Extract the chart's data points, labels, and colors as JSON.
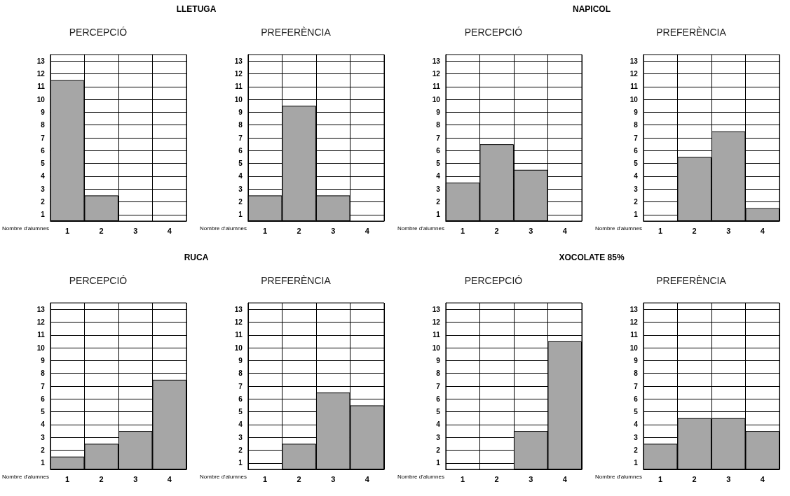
{
  "chart_data": [
    {
      "type": "bar",
      "title": "LLETUGA",
      "subtitle": "PERCEPCIÓ",
      "ylabel": "Nombre d'alumnes",
      "categories": [
        "1",
        "2",
        "3",
        "4"
      ],
      "values": [
        11,
        2,
        0,
        0
      ],
      "color": "#a6a6a6",
      "ylim": [
        0,
        13
      ],
      "yticks": [
        {
          "value": 0.5,
          "label": "1"
        },
        {
          "value": 1.5,
          "label": "2"
        },
        {
          "value": 2.5,
          "label": "3"
        },
        {
          "value": 3.5,
          "label": "4"
        },
        {
          "value": 4.5,
          "label": "5"
        },
        {
          "value": 5.5,
          "label": "6"
        },
        {
          "value": 6.5,
          "label": "7"
        },
        {
          "value": 7.5,
          "label": "8"
        },
        {
          "value": 8.5,
          "label": "9"
        },
        {
          "value": 9.5,
          "label": "10"
        },
        {
          "value": 10.5,
          "label": "11"
        },
        {
          "value": 11.5,
          "label": "12"
        },
        {
          "value": 12.5,
          "label": "13"
        }
      ],
      "grid": true
    },
    {
      "type": "bar",
      "subtitle": "PREFERÈNCIA",
      "ylabel": "Nombre d'alumnes",
      "categories": [
        "1",
        "2",
        "3",
        "4"
      ],
      "values": [
        2,
        9,
        2,
        0
      ],
      "color": "#a6a6a6",
      "ylim": [
        0,
        13
      ],
      "yticks": [
        {
          "value": 0.5,
          "label": "1"
        },
        {
          "value": 1.5,
          "label": "2"
        },
        {
          "value": 2.5,
          "label": "3"
        },
        {
          "value": 3.5,
          "label": "4"
        },
        {
          "value": 4.5,
          "label": "5"
        },
        {
          "value": 5.5,
          "label": "6"
        },
        {
          "value": 6.5,
          "label": "7"
        },
        {
          "value": 7.5,
          "label": "8"
        },
        {
          "value": 8.5,
          "label": "9"
        },
        {
          "value": 9.5,
          "label": "10"
        },
        {
          "value": 10.5,
          "label": "11"
        },
        {
          "value": 11.5,
          "label": "12"
        },
        {
          "value": 12.5,
          "label": "13"
        }
      ],
      "grid": true
    },
    {
      "type": "bar",
      "title": "NAPICOL",
      "subtitle": "PERCEPCIÓ",
      "ylabel": "Nombre d'alumnes",
      "categories": [
        "1",
        "2",
        "3",
        "4"
      ],
      "values": [
        3,
        6,
        4,
        0
      ],
      "color": "#a6a6a6",
      "ylim": [
        0,
        13
      ],
      "yticks": [
        {
          "value": 0.5,
          "label": "1"
        },
        {
          "value": 1.5,
          "label": "2"
        },
        {
          "value": 2.5,
          "label": "3"
        },
        {
          "value": 3.5,
          "label": "4"
        },
        {
          "value": 4.5,
          "label": "5"
        },
        {
          "value": 5.5,
          "label": "6"
        },
        {
          "value": 6.5,
          "label": "7"
        },
        {
          "value": 7.5,
          "label": "8"
        },
        {
          "value": 8.5,
          "label": "9"
        },
        {
          "value": 9.5,
          "label": "10"
        },
        {
          "value": 10.5,
          "label": "11"
        },
        {
          "value": 11.5,
          "label": "12"
        },
        {
          "value": 12.5,
          "label": "13"
        }
      ],
      "grid": true
    },
    {
      "type": "bar",
      "subtitle": "PREFERÈNCIA",
      "ylabel": "Nombre d'alumnes",
      "categories": [
        "1",
        "2",
        "3",
        "4"
      ],
      "values": [
        0,
        5,
        7,
        1
      ],
      "color": "#a6a6a6",
      "ylim": [
        0,
        13
      ],
      "yticks": [
        {
          "value": 0.5,
          "label": "1"
        },
        {
          "value": 1.5,
          "label": "2"
        },
        {
          "value": 2.5,
          "label": "3"
        },
        {
          "value": 3.5,
          "label": "4"
        },
        {
          "value": 4.5,
          "label": "5"
        },
        {
          "value": 5.5,
          "label": "6"
        },
        {
          "value": 6.5,
          "label": "7"
        },
        {
          "value": 7.5,
          "label": "8"
        },
        {
          "value": 8.5,
          "label": "9"
        },
        {
          "value": 9.5,
          "label": "10"
        },
        {
          "value": 10.5,
          "label": "11"
        },
        {
          "value": 11.5,
          "label": "12"
        },
        {
          "value": 12.5,
          "label": "13"
        }
      ],
      "grid": true
    },
    {
      "type": "bar",
      "title": "RUCA",
      "subtitle": "PERCEPCIÓ",
      "ylabel": "Nombre d'alumnes",
      "categories": [
        "1",
        "2",
        "3",
        "4"
      ],
      "values": [
        1,
        2,
        3,
        7
      ],
      "color": "#a6a6a6",
      "ylim": [
        0,
        13
      ],
      "yticks": [
        {
          "value": 0.5,
          "label": "1"
        },
        {
          "value": 1.5,
          "label": "2"
        },
        {
          "value": 2.5,
          "label": "3"
        },
        {
          "value": 3.5,
          "label": "4"
        },
        {
          "value": 4.5,
          "label": "5"
        },
        {
          "value": 5.5,
          "label": "6"
        },
        {
          "value": 6.5,
          "label": "7"
        },
        {
          "value": 7.5,
          "label": "8"
        },
        {
          "value": 8.5,
          "label": "9"
        },
        {
          "value": 9.5,
          "label": "10"
        },
        {
          "value": 10.5,
          "label": "11"
        },
        {
          "value": 11.5,
          "label": "12"
        },
        {
          "value": 12.5,
          "label": "13"
        }
      ],
      "grid": true
    },
    {
      "type": "bar",
      "subtitle": "PREFERÈNCIA",
      "ylabel": "Nombre d'alumnes",
      "categories": [
        "1",
        "2",
        "3",
        "4"
      ],
      "values": [
        0,
        2,
        6,
        5
      ],
      "color": "#a6a6a6",
      "ylim": [
        0,
        13
      ],
      "yticks": [
        {
          "value": 0.5,
          "label": "1"
        },
        {
          "value": 1.5,
          "label": "2"
        },
        {
          "value": 2.5,
          "label": "3"
        },
        {
          "value": 3.5,
          "label": "4"
        },
        {
          "value": 4.5,
          "label": "5"
        },
        {
          "value": 5.5,
          "label": "6"
        },
        {
          "value": 6.5,
          "label": "7"
        },
        {
          "value": 7.5,
          "label": "8"
        },
        {
          "value": 8.5,
          "label": "9"
        },
        {
          "value": 9.5,
          "label": "10"
        },
        {
          "value": 10.5,
          "label": "11"
        },
        {
          "value": 11.5,
          "label": "12"
        },
        {
          "value": 12.5,
          "label": "13"
        }
      ],
      "grid": true
    },
    {
      "type": "bar",
      "title": "XOCOLATE 85%",
      "subtitle": "PERCEPCIÓ",
      "ylabel": "Nombre d'alumnes",
      "categories": [
        "1",
        "2",
        "3",
        "4"
      ],
      "values": [
        0,
        0,
        3,
        10
      ],
      "color": "#a6a6a6",
      "ylim": [
        0,
        13
      ],
      "yticks": [
        {
          "value": 0.5,
          "label": "1"
        },
        {
          "value": 1.5,
          "label": "2"
        },
        {
          "value": 2.5,
          "label": "3"
        },
        {
          "value": 3.5,
          "label": "4"
        },
        {
          "value": 4.5,
          "label": "5"
        },
        {
          "value": 5.5,
          "label": "6"
        },
        {
          "value": 6.5,
          "label": "7"
        },
        {
          "value": 7.5,
          "label": "8"
        },
        {
          "value": 8.5,
          "label": "9"
        },
        {
          "value": 9.5,
          "label": "10"
        },
        {
          "value": 10.5,
          "label": "11"
        },
        {
          "value": 11.5,
          "label": "12"
        },
        {
          "value": 12.5,
          "label": "13"
        }
      ],
      "grid": true
    },
    {
      "type": "bar",
      "subtitle": "PREFERÈNCIA",
      "ylabel": "Nombre d'alumnes",
      "categories": [
        "1",
        "2",
        "3",
        "4"
      ],
      "values": [
        2,
        4,
        4,
        3
      ],
      "color": "#a6a6a6",
      "ylim": [
        0,
        13
      ],
      "yticks": [
        {
          "value": 0.5,
          "label": "1"
        },
        {
          "value": 1.5,
          "label": "2"
        },
        {
          "value": 2.5,
          "label": "3"
        },
        {
          "value": 3.5,
          "label": "4"
        },
        {
          "value": 4.5,
          "label": "5"
        },
        {
          "value": 5.5,
          "label": "6"
        },
        {
          "value": 6.5,
          "label": "7"
        },
        {
          "value": 7.5,
          "label": "8"
        },
        {
          "value": 8.5,
          "label": "9"
        },
        {
          "value": 9.5,
          "label": "10"
        },
        {
          "value": 10.5,
          "label": "11"
        },
        {
          "value": 11.5,
          "label": "12"
        },
        {
          "value": 12.5,
          "label": "13"
        }
      ],
      "grid": true
    }
  ]
}
